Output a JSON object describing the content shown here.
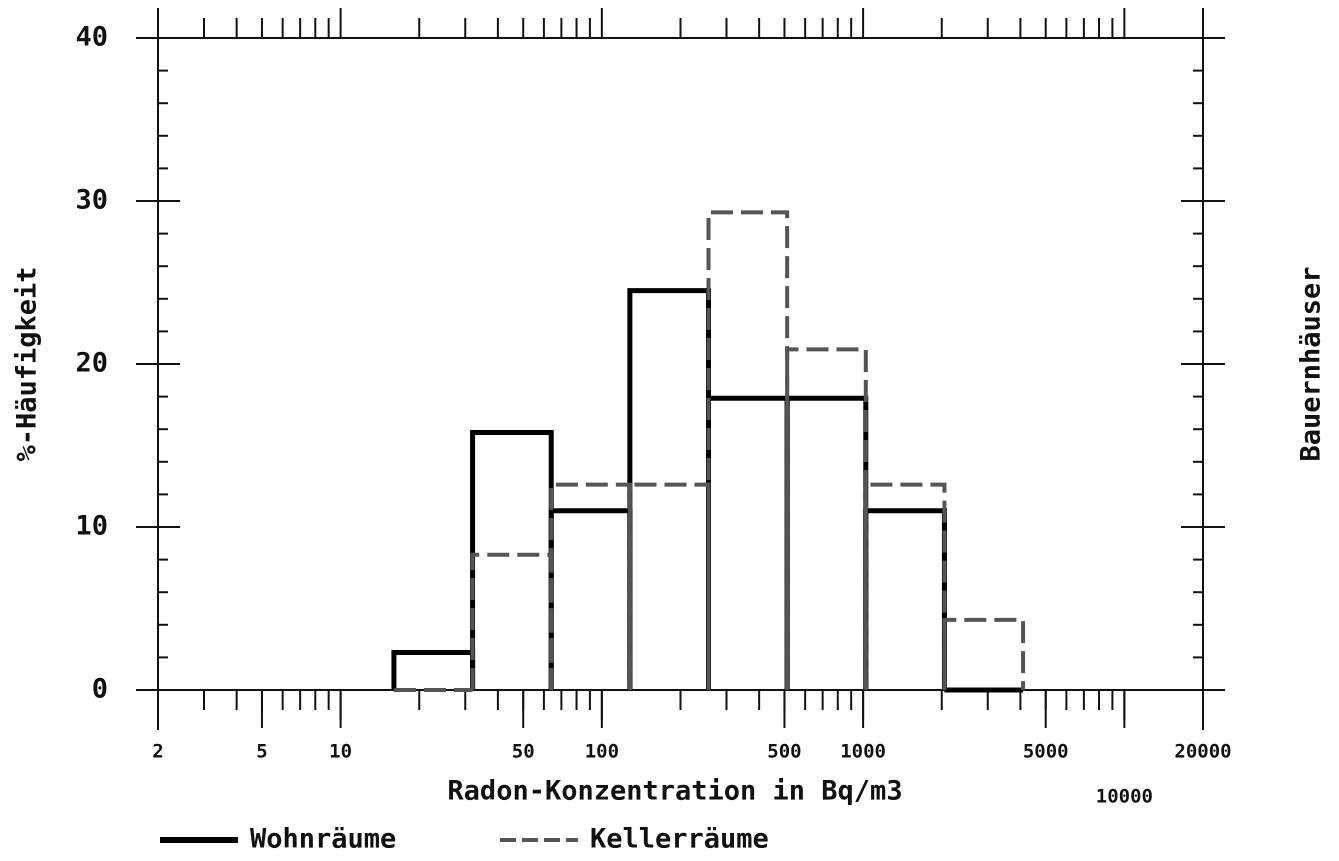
{
  "chart_data": {
    "type": "histogram",
    "xlabel": "Radon-Konzentration in Bq/m3",
    "ylabel": "%-Häufigkeit",
    "side_label": "Bauernhäuser",
    "bins": [
      16,
      32,
      64,
      128,
      256,
      512,
      1024,
      2048,
      4096
    ],
    "series": [
      {
        "name": "Wohnräume",
        "color": "#000000",
        "style": "solid",
        "values": [
          2.3,
          15.8,
          11.0,
          24.5,
          17.9,
          17.9,
          11.0,
          0
        ]
      },
      {
        "name": "Kellerräume",
        "color": "#555555",
        "style": "dashed",
        "values": [
          0,
          8.3,
          12.6,
          12.6,
          29.3,
          20.9,
          12.6,
          4.3
        ]
      }
    ],
    "xscale": "log",
    "xlim": [
      2,
      20000
    ],
    "xticks": [
      2,
      5,
      10,
      50,
      100,
      500,
      1000,
      5000,
      10000,
      20000
    ],
    "ylim": [
      0,
      40
    ],
    "yticks": [
      0,
      10,
      20,
      30,
      40
    ],
    "grid": false
  }
}
